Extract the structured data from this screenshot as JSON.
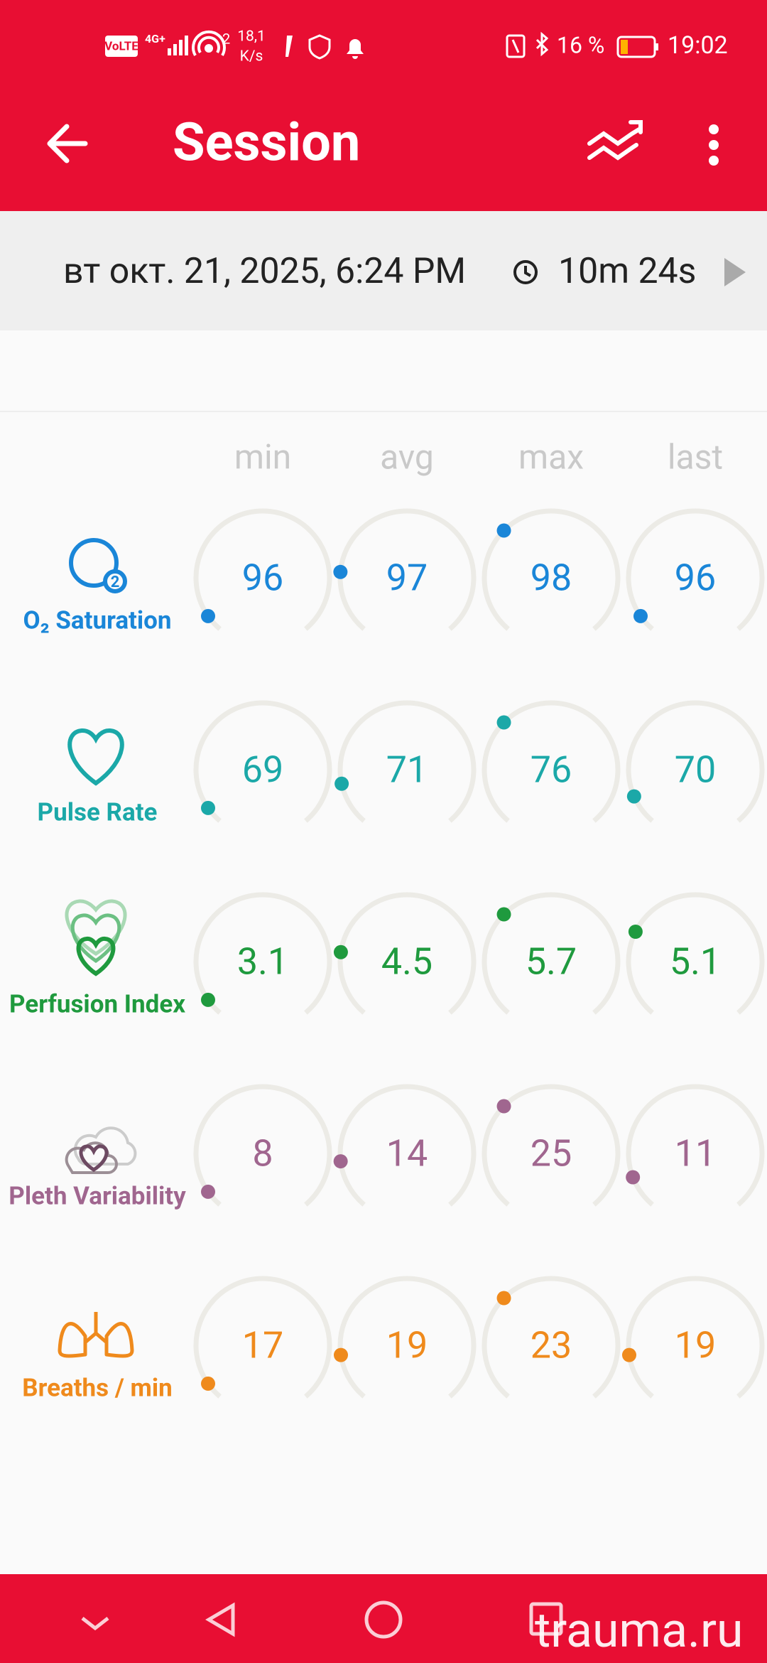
{
  "status_bar": {
    "network": "VoLTE",
    "signal": "4G+",
    "hotspot_count": "2",
    "speed_value": "18,1",
    "speed_unit": "K/s",
    "battery": "16 %",
    "time": "19:02"
  },
  "app_bar": {
    "title": "Session"
  },
  "session": {
    "date": "вт окт. 21, 2025, 6:24 PM",
    "duration": "10m 24s"
  },
  "table": {
    "columns": [
      "min",
      "avg",
      "max",
      "last"
    ],
    "rows": [
      {
        "label": "O₂ Saturation",
        "color": "#1a86d8",
        "values": [
          96,
          97,
          98,
          96
        ]
      },
      {
        "label": "Pulse Rate",
        "color": "#1ba8a8",
        "values": [
          69,
          71,
          76,
          70
        ]
      },
      {
        "label": "Perfusion Index",
        "color": "#1f9a3e",
        "values": [
          3.1,
          4.5,
          5.7,
          5.1
        ]
      },
      {
        "label": "Pleth Variability",
        "color": "#a0668f",
        "values": [
          8,
          14,
          25,
          11
        ]
      },
      {
        "label": "Breaths / min",
        "color": "#ef8a1c",
        "values": [
          17,
          19,
          23,
          19
        ]
      }
    ]
  },
  "watermark": "trauma.ru"
}
